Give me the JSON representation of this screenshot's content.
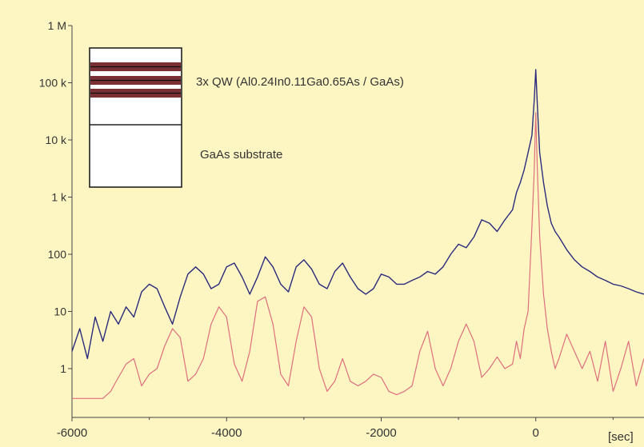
{
  "chart_data": {
    "type": "line",
    "title": "",
    "xlabel": "[sec]",
    "ylabel": "",
    "y_scale": "log",
    "xlim": [
      -6000,
      1400
    ],
    "ylim": [
      0.14,
      1000000
    ],
    "x_ticks": [
      -6000,
      -4000,
      -2000,
      0
    ],
    "x_tick_labels": [
      "-6000",
      "-4000",
      "-2000",
      "0"
    ],
    "y_ticks": [
      1,
      10,
      100,
      1000,
      10000,
      100000,
      1000000
    ],
    "y_tick_labels": [
      "1",
      "10",
      "100",
      "1 k",
      "10 k",
      "100 k",
      "1 M"
    ],
    "grid": false,
    "legend": "none",
    "inset": {
      "layer_label": "3x QW (Al0.24In0.11Ga0.65As / GaAs)",
      "substrate_label": "GaAs substrate"
    },
    "series": [
      {
        "color": "#2b2b7e",
        "x": [
          -6000,
          -5900,
          -5800,
          -5700,
          -5600,
          -5500,
          -5400,
          -5300,
          -5200,
          -5100,
          -5000,
          -4900,
          -4800,
          -4700,
          -4600,
          -4500,
          -4400,
          -4300,
          -4200,
          -4100,
          -4000,
          -3900,
          -3800,
          -3700,
          -3600,
          -3500,
          -3400,
          -3300,
          -3200,
          -3100,
          -3000,
          -2900,
          -2800,
          -2700,
          -2600,
          -2500,
          -2400,
          -2300,
          -2200,
          -2100,
          -2000,
          -1900,
          -1800,
          -1700,
          -1600,
          -1500,
          -1400,
          -1300,
          -1200,
          -1100,
          -1000,
          -900,
          -800,
          -700,
          -600,
          -500,
          -400,
          -300,
          -250,
          -200,
          -150,
          -100,
          -50,
          -20,
          0,
          20,
          50,
          100,
          150,
          200,
          250,
          300,
          400,
          500,
          600,
          700,
          800,
          900,
          1000,
          1100,
          1200,
          1300,
          1400
        ],
        "values": [
          2,
          5,
          1.5,
          8,
          3,
          10,
          6,
          12,
          8,
          22,
          30,
          25,
          12,
          6,
          18,
          45,
          60,
          45,
          25,
          30,
          60,
          70,
          40,
          20,
          40,
          90,
          60,
          30,
          22,
          60,
          80,
          55,
          30,
          25,
          50,
          70,
          40,
          25,
          20,
          25,
          45,
          40,
          30,
          30,
          35,
          40,
          50,
          45,
          60,
          100,
          150,
          130,
          200,
          400,
          350,
          250,
          400,
          600,
          1200,
          1800,
          3000,
          6000,
          12000,
          50000,
          170000,
          40000,
          6000,
          1800,
          700,
          350,
          250,
          200,
          120,
          80,
          60,
          50,
          40,
          35,
          30,
          28,
          25,
          22,
          20
        ]
      },
      {
        "color": "#de6f7c",
        "x": [
          -6000,
          -5900,
          -5800,
          -5700,
          -5600,
          -5500,
          -5400,
          -5300,
          -5200,
          -5100,
          -5000,
          -4900,
          -4800,
          -4700,
          -4600,
          -4500,
          -4400,
          -4300,
          -4200,
          -4100,
          -4000,
          -3900,
          -3800,
          -3700,
          -3600,
          -3500,
          -3400,
          -3300,
          -3200,
          -3100,
          -3000,
          -2900,
          -2800,
          -2700,
          -2600,
          -2500,
          -2400,
          -2300,
          -2200,
          -2100,
          -2000,
          -1900,
          -1800,
          -1700,
          -1600,
          -1500,
          -1400,
          -1300,
          -1200,
          -1100,
          -1000,
          -900,
          -800,
          -700,
          -600,
          -500,
          -400,
          -300,
          -250,
          -200,
          -150,
          -100,
          -50,
          -20,
          0,
          20,
          50,
          100,
          150,
          200,
          250,
          300,
          400,
          500,
          600,
          700,
          800,
          900,
          1000,
          1100,
          1200,
          1300,
          1400
        ],
        "values": [
          0.3,
          0.3,
          0.3,
          0.3,
          0.3,
          0.4,
          0.7,
          1.2,
          1.5,
          0.5,
          0.8,
          1.0,
          2.5,
          5.0,
          3.5,
          0.6,
          0.8,
          1.5,
          6.0,
          12.0,
          8.0,
          1.2,
          0.6,
          2.0,
          15.0,
          18.0,
          6.0,
          0.8,
          0.5,
          3.0,
          12.0,
          8.0,
          1.0,
          0.4,
          0.6,
          1.5,
          0.6,
          0.5,
          0.6,
          0.8,
          0.7,
          0.4,
          0.35,
          0.4,
          0.5,
          2.0,
          4.5,
          1.0,
          0.5,
          1.0,
          3.0,
          6.0,
          3.0,
          0.7,
          1.0,
          1.6,
          1.0,
          1.2,
          3.0,
          1.5,
          5.0,
          10.0,
          300,
          3000,
          30000,
          3000,
          200,
          20,
          5,
          2,
          1.0,
          1.5,
          4.0,
          2.0,
          1.0,
          2.0,
          0.6,
          3.0,
          0.4,
          1.0,
          3.0,
          0.5,
          1.5
        ]
      }
    ]
  }
}
